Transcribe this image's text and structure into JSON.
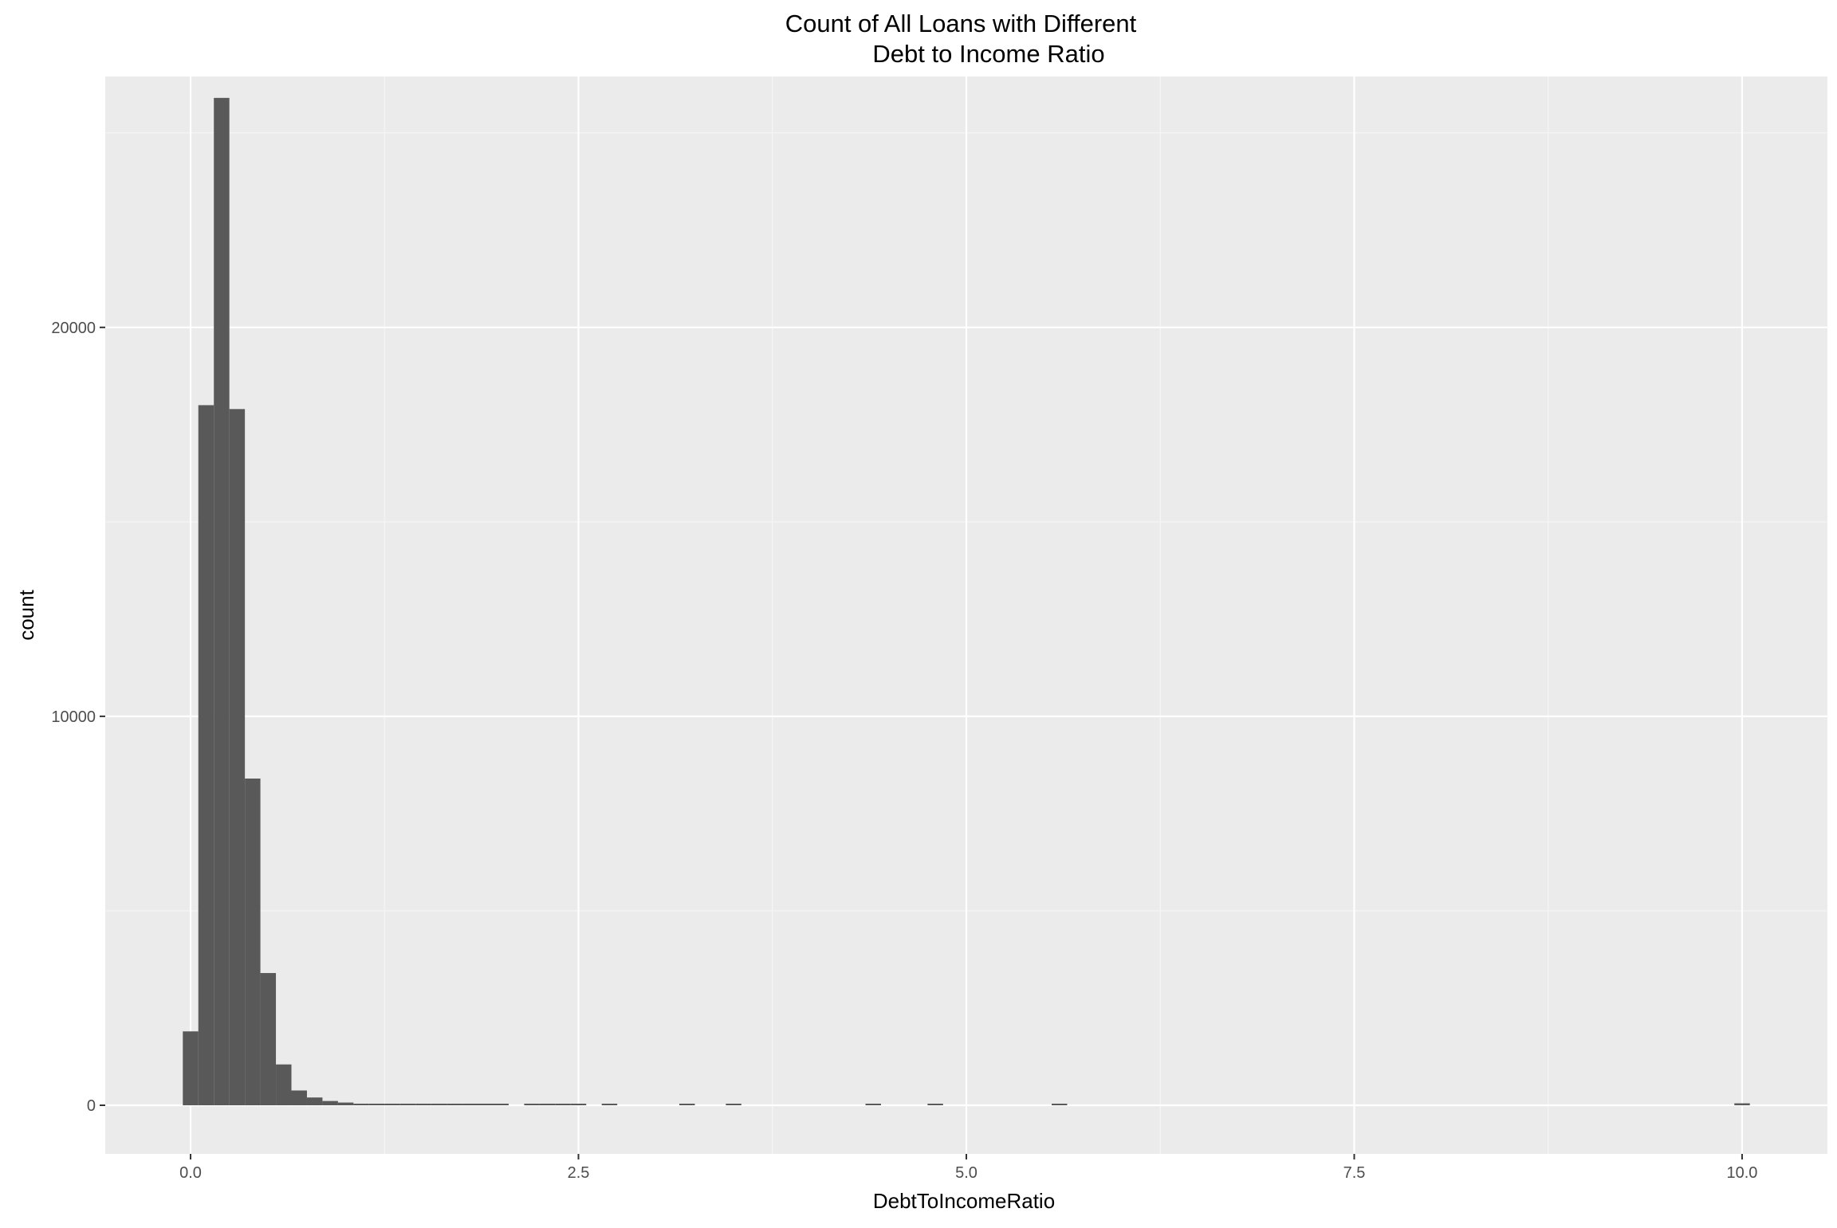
{
  "chart_data": {
    "type": "bar",
    "title_lines": [
      "Count of All Loans with Different",
      "Debt to Income Ratio"
    ],
    "xlabel": "DebtToIncomeRatio",
    "ylabel": "count",
    "xlim": [
      -0.55,
      10.55
    ],
    "ylim": [
      -1250,
      26450
    ],
    "x_ticks": [
      {
        "value": 0.0,
        "label": "0.0"
      },
      {
        "value": 2.5,
        "label": "2.5"
      },
      {
        "value": 5.0,
        "label": "5.0"
      },
      {
        "value": 7.5,
        "label": "7.5"
      },
      {
        "value": 10.0,
        "label": "10.0"
      }
    ],
    "y_ticks": [
      {
        "value": 0,
        "label": "0"
      },
      {
        "value": 10000,
        "label": "10000"
      },
      {
        "value": 20000,
        "label": "20000"
      }
    ],
    "x_minor_gridlines": [
      1.25,
      3.75,
      6.25,
      8.75
    ],
    "y_minor_gridlines": [
      5000,
      15000,
      25000
    ],
    "bin_width": 0.1,
    "bins": [
      {
        "x": 0.0,
        "count": 1900
      },
      {
        "x": 0.1,
        "count": 18000
      },
      {
        "x": 0.2,
        "count": 25900
      },
      {
        "x": 0.3,
        "count": 17900
      },
      {
        "x": 0.4,
        "count": 8400
      },
      {
        "x": 0.5,
        "count": 3400
      },
      {
        "x": 0.6,
        "count": 1050
      },
      {
        "x": 0.7,
        "count": 380
      },
      {
        "x": 0.8,
        "count": 200
      },
      {
        "x": 0.9,
        "count": 110
      },
      {
        "x": 1.0,
        "count": 70
      },
      {
        "x": 1.1,
        "count": 40
      },
      {
        "x": 1.2,
        "count": 25
      },
      {
        "x": 1.3,
        "count": 18
      },
      {
        "x": 1.4,
        "count": 15
      },
      {
        "x": 1.5,
        "count": 12
      },
      {
        "x": 1.6,
        "count": 10
      },
      {
        "x": 1.7,
        "count": 9
      },
      {
        "x": 1.8,
        "count": 8
      },
      {
        "x": 1.9,
        "count": 7
      },
      {
        "x": 2.0,
        "count": 6
      },
      {
        "x": 2.2,
        "count": 5
      },
      {
        "x": 2.3,
        "count": 4
      },
      {
        "x": 2.4,
        "count": 4
      },
      {
        "x": 2.5,
        "count": 3
      },
      {
        "x": 2.7,
        "count": 3
      },
      {
        "x": 3.2,
        "count": 2
      },
      {
        "x": 3.5,
        "count": 2
      },
      {
        "x": 4.4,
        "count": 2
      },
      {
        "x": 4.8,
        "count": 2
      },
      {
        "x": 5.6,
        "count": 2
      },
      {
        "x": 10.0,
        "count": 50
      }
    ],
    "colors": {
      "panel_background": "#ebebeb",
      "grid_major": "#ffffff",
      "grid_minor": "#f5f5f5",
      "bar_fill": "#595959",
      "tick_text": "#4d4d4d",
      "tick_mark": "#333333"
    },
    "grid": true,
    "legend": "none"
  }
}
